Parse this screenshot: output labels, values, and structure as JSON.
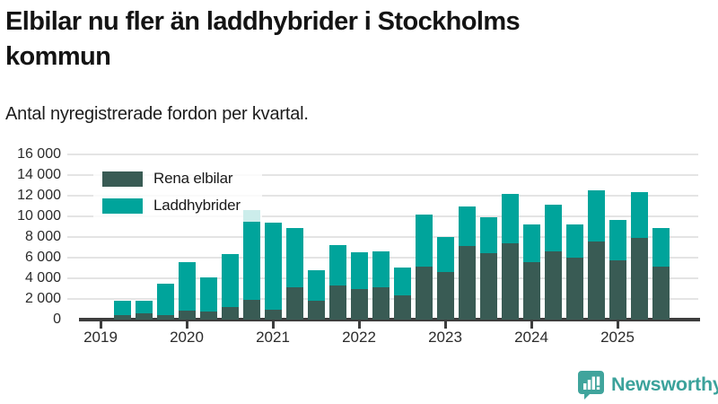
{
  "header": {
    "title_lines": [
      "Elbilar nu fler än laddhybrider i Stockholms",
      "kommun"
    ],
    "subtitle": "Antal nyregistrerade fordon per kvartal."
  },
  "chart_data": {
    "type": "bar",
    "stacked": true,
    "title": "Elbilar nu fler än laddhybrider i Stockholms kommun",
    "subtitle": "Antal nyregistrerade fordon per kvartal.",
    "categories": [
      "2019 Q2",
      "2019 Q3",
      "2019 Q4",
      "2020 Q1",
      "2020 Q2",
      "2020 Q3",
      "2020 Q4",
      "2021 Q1",
      "2021 Q2",
      "2021 Q3",
      "2021 Q4",
      "2022 Q1",
      "2022 Q2",
      "2022 Q3",
      "2022 Q4",
      "2023 Q1",
      "2023 Q2",
      "2023 Q3",
      "2023 Q4",
      "2024 Q1",
      "2024 Q2",
      "2024 Q3",
      "2024 Q4",
      "2025 Q1",
      "2025 Q2",
      "2025 Q3"
    ],
    "series": [
      {
        "name": "Rena elbilar",
        "color": "#395b54",
        "values": [
          450,
          600,
          400,
          850,
          800,
          1250,
          1900,
          950,
          3150,
          1800,
          3300,
          2950,
          3150,
          2350,
          5100,
          4650,
          7100,
          6450,
          7350,
          5550,
          6600,
          6000,
          7550,
          5700,
          7900,
          5150
        ]
      },
      {
        "name": "Laddhybrider",
        "color": "#00a49b",
        "values": [
          1350,
          1200,
          3100,
          4700,
          3250,
          5100,
          8700,
          8450,
          5700,
          2950,
          3900,
          3600,
          3450,
          2700,
          5100,
          3350,
          3850,
          3450,
          4850,
          3650,
          4500,
          3200,
          5000,
          3950,
          4450,
          3750
        ]
      }
    ],
    "ylim": [
      0,
      16000
    ],
    "ytick_step": 2000,
    "ytick_labels": [
      "0",
      "2 000",
      "4 000",
      "6 000",
      "8 000",
      "10 000",
      "12 000",
      "14 000",
      "16 000"
    ],
    "xtick_labels": [
      "2019",
      "2020",
      "2021",
      "2022",
      "2023",
      "2024",
      "2025"
    ],
    "grid": "horizontal",
    "legend_position": "inside-top-left"
  },
  "footer": {
    "brand": "Newsworthy",
    "brand_color": "#3ba29b"
  }
}
